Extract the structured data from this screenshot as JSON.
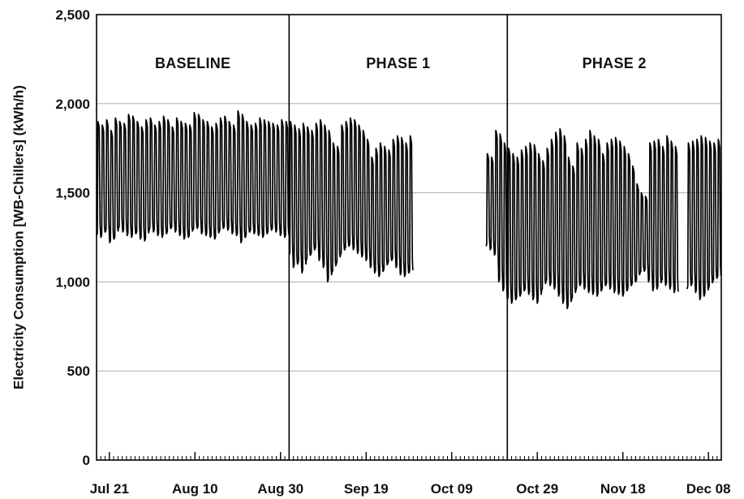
{
  "chart_data": {
    "type": "line",
    "title": "",
    "ylabel": "Electricity Consumption [WB-Chillers] (kWh/h)",
    "xlabel": "",
    "ylim": [
      0,
      2500
    ],
    "yticks": [
      0,
      500,
      1000,
      1500,
      2000,
      2500
    ],
    "ytick_labels": [
      "0",
      "500",
      "1,000",
      "1,500",
      "2,000",
      "2,500"
    ],
    "xlim": [
      "2008-07-18",
      "2008-12-11"
    ],
    "xticks": [
      "2008-07-21",
      "2008-08-10",
      "2008-08-30",
      "2008-09-19",
      "2008-10-09",
      "2008-10-29",
      "2008-11-18",
      "2008-12-08"
    ],
    "xtick_labels": [
      "Jul 21",
      "Aug 10",
      "Aug 30",
      "Sep 19",
      "Oct 09",
      "Oct 29",
      "Nov 18",
      "Dec 08"
    ],
    "grid": true,
    "phase_boundaries": [
      "2008-09-01",
      "2008-10-22"
    ],
    "phases": [
      {
        "label": "BASELINE",
        "start": "2008-07-18",
        "end": "2008-09-01"
      },
      {
        "label": "PHASE 1",
        "start": "2008-09-01",
        "end": "2008-10-22"
      },
      {
        "label": "PHASE 2",
        "start": "2008-10-22",
        "end": "2008-12-11"
      }
    ],
    "series": [
      {
        "color": "#000000",
        "pattern": "daily cycle: peak daytime demand, minimum overnight",
        "segments": [
          {
            "start": "2008-07-18",
            "end": "2008-09-01",
            "daily_peak": [
              1900,
              1880,
              1910,
              1850,
              1920,
              1900,
              1890,
              1940,
              1930,
              1900,
              1870,
              1910,
              1920,
              1880,
              1900,
              1930,
              1910,
              1870,
              1920,
              1900,
              1890,
              1880,
              1950,
              1940,
              1910,
              1900,
              1870,
              1890,
              1920,
              1930,
              1900,
              1880,
              1960,
              1940,
              1900,
              1880,
              1890,
              1920,
              1910,
              1900,
              1890,
              1880,
              1910,
              1900
            ],
            "daily_low": [
              1260,
              1250,
              1280,
              1220,
              1240,
              1300,
              1280,
              1260,
              1250,
              1270,
              1240,
              1230,
              1290,
              1280,
              1260,
              1250,
              1270,
              1300,
              1280,
              1260,
              1240,
              1250,
              1290,
              1300,
              1270,
              1260,
              1250,
              1240,
              1280,
              1300,
              1290,
              1270,
              1260,
              1220,
              1250,
              1280,
              1270,
              1260,
              1250,
              1270,
              1290,
              1280,
              1260,
              1250
            ]
          },
          {
            "start": "2008-09-01",
            "end": "2008-09-30",
            "daily_peak": [
              1900,
              1880,
              1860,
              1890,
              1870,
              1850,
              1890,
              1910,
              1880,
              1850,
              1780,
              1760,
              1880,
              1900,
              1920,
              1910,
              1880,
              1850,
              1800,
              1700,
              1750,
              1780,
              1760,
              1740,
              1800,
              1820,
              1810,
              1780,
              1820
            ],
            "daily_low": [
              1150,
              1080,
              1100,
              1050,
              1120,
              1150,
              1180,
              1120,
              1080,
              1000,
              1050,
              1100,
              1150,
              1180,
              1200,
              1180,
              1160,
              1140,
              1120,
              1080,
              1050,
              1030,
              1060,
              1100,
              1120,
              1080,
              1040,
              1030,
              1050
            ]
          },
          {
            "start": "2008-10-17",
            "end": "2008-12-11",
            "daily_peak": [
              1720,
              1700,
              1850,
              1830,
              1780,
              1750,
              1720,
              1700,
              1740,
              1760,
              1780,
              1770,
              1720,
              1680,
              1750,
              1800,
              1840,
              1860,
              1820,
              1700,
              1650,
              1780,
              1750,
              1800,
              1850,
              1820,
              1800,
              1720,
              1780,
              1800,
              1810,
              1790,
              1760,
              1720,
              1650,
              1550,
              1500,
              1480,
              1780,
              1790,
              1800,
              1760,
              1820,
              1790,
              1760,
              1800,
              1810,
              1780,
              1790,
              1800,
              1820,
              1810,
              1790,
              1780,
              1800
            ],
            "daily_low": [
              1200,
              1180,
              1150,
              1000,
              950,
              900,
              880,
              900,
              920,
              950,
              930,
              900,
              880,
              950,
              1000,
              980,
              960,
              920,
              880,
              850,
              900,
              950,
              980,
              960,
              940,
              930,
              920,
              950,
              980,
              960,
              940,
              930,
              920,
              950,
              980,
              1000,
              1050,
              1060,
              1000,
              950,
              960,
              1000,
              980,
              960,
              940,
              920,
              950,
              960,
              980,
              940,
              900,
              920,
              960,
              1000,
              1020
            ],
            "gaps": [
              [
                "2008-12-01",
                "2008-12-03"
              ]
            ]
          }
        ]
      }
    ]
  }
}
